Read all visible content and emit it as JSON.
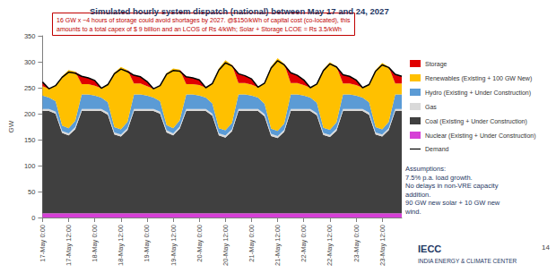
{
  "chart_data": {
    "type": "area",
    "stacked": true,
    "title": "Simulated hourly system dispatch (national) between May 17 and 24, 2027",
    "annotations": [
      "16 GW x ~4 hours of storage could avoid shortages by 2027. @$150/kWh of capital cost (co-located), this",
      "amounts to a total capex of $ 9 billion and an LCOS of Rs 4/kWh; Solar + Storage LCOE = Rs 3.5/kWh"
    ],
    "notes": [
      "Assumptions:",
      "7.5% p.a. load growth.",
      "No delays in non-VRE capacity",
      "addition.",
      "90 GW new solar + 10 GW new",
      "wind."
    ],
    "y_label": "GW",
    "ylim": [
      0,
      350
    ],
    "yticks": [
      0,
      50,
      100,
      150,
      200,
      250,
      300,
      350
    ],
    "grid": false,
    "legend": "right",
    "categories": [
      "17-May 0:00",
      null,
      null,
      null,
      "17-May 12:00",
      null,
      null,
      null,
      "18-May 0:00",
      null,
      null,
      null,
      "18-May 12:00",
      null,
      null,
      null,
      "19-May 0:00",
      null,
      null,
      null,
      "19-May 12:00",
      null,
      null,
      null,
      "20-May 0:00",
      null,
      null,
      null,
      "20-May 12:00",
      null,
      null,
      null,
      "21-May 0:00",
      null,
      null,
      null,
      "21-May 12:00",
      null,
      null,
      null,
      "22-May 0:00",
      null,
      null,
      null,
      "22-May 12:00",
      null,
      null,
      null,
      "23-May 0:00",
      null,
      null,
      null,
      "23-May 12:00",
      null,
      null,
      null
    ],
    "series": [
      {
        "name": "Storage",
        "type": "area",
        "color": "#e00000",
        "values": [
          8,
          0,
          0,
          0,
          0,
          0,
          15,
          12,
          10,
          0,
          0,
          0,
          0,
          0,
          16,
          13,
          9,
          0,
          0,
          0,
          0,
          0,
          14,
          12,
          10,
          0,
          0,
          0,
          0,
          0,
          18,
          14,
          11,
          0,
          0,
          0,
          0,
          0,
          20,
          15,
          10,
          0,
          0,
          0,
          0,
          0,
          17,
          14,
          10,
          0,
          0,
          0,
          0,
          0,
          18,
          14
        ]
      },
      {
        "name": "Renewables (Existing + 100 GW New)",
        "type": "area",
        "color": "#ffc000",
        "values": [
          18,
          17,
          30,
          95,
          112,
          95,
          20,
          20,
          19,
          18,
          34,
          105,
          120,
          100,
          21,
          21,
          18,
          17,
          30,
          100,
          115,
          98,
          20,
          20,
          20,
          19,
          38,
          115,
          135,
          112,
          22,
          22,
          21,
          20,
          40,
          120,
          140,
          115,
          22,
          22,
          20,
          19,
          36,
          112,
          130,
          108,
          21,
          21,
          20,
          19,
          34,
          110,
          128,
          106,
          21,
          21
        ]
      },
      {
        "name": "Hydro (Existing + Under Construction)",
        "type": "area",
        "color": "#5b9bd5",
        "values": [
          26,
          22,
          20,
          10,
          10,
          12,
          28,
          28,
          26,
          22,
          20,
          10,
          10,
          12,
          28,
          28,
          26,
          22,
          20,
          10,
          10,
          12,
          28,
          28,
          26,
          22,
          20,
          10,
          10,
          12,
          28,
          28,
          26,
          22,
          20,
          10,
          10,
          12,
          28,
          28,
          26,
          22,
          20,
          10,
          10,
          12,
          28,
          28,
          26,
          22,
          20,
          10,
          10,
          12,
          28,
          28
        ]
      },
      {
        "name": "Gas",
        "type": "area",
        "color": "#d9d9d9",
        "values": [
          4,
          4,
          4,
          4,
          4,
          4,
          4,
          4,
          4,
          4,
          4,
          4,
          4,
          4,
          4,
          4,
          4,
          4,
          4,
          4,
          4,
          4,
          4,
          4,
          4,
          4,
          4,
          4,
          4,
          4,
          4,
          4,
          4,
          4,
          4,
          4,
          4,
          4,
          4,
          4,
          4,
          4,
          4,
          4,
          4,
          4,
          4,
          4,
          4,
          4,
          4,
          4,
          4,
          4,
          4,
          4
        ]
      },
      {
        "name": "Coal (Existing + Under Construction)",
        "type": "area",
        "color": "#404040",
        "values": [
          197,
          197,
          192,
          155,
          150,
          162,
          197,
          197,
          197,
          197,
          190,
          152,
          148,
          160,
          197,
          197,
          197,
          197,
          192,
          156,
          150,
          163,
          197,
          197,
          197,
          197,
          188,
          150,
          146,
          158,
          197,
          197,
          197,
          197,
          187,
          149,
          145,
          157,
          197,
          197,
          197,
          197,
          189,
          151,
          147,
          159,
          197,
          197,
          197,
          197,
          190,
          152,
          148,
          160,
          197,
          197
        ]
      },
      {
        "name": "Nuclear (Existing + Under Construction)",
        "type": "area",
        "color": "#d63fd6",
        "values": [
          8,
          8,
          8,
          8,
          8,
          8,
          8,
          8,
          8,
          8,
          8,
          8,
          8,
          8,
          8,
          8,
          8,
          8,
          8,
          8,
          8,
          8,
          8,
          8,
          8,
          8,
          8,
          8,
          8,
          8,
          8,
          8,
          8,
          8,
          8,
          8,
          8,
          8,
          8,
          8,
          8,
          8,
          8,
          8,
          8,
          8,
          8,
          8,
          8,
          8,
          8,
          8,
          8,
          8,
          8,
          8
        ]
      },
      {
        "name": "Demand",
        "type": "line",
        "color": "#000000",
        "values": [
          261,
          248,
          254,
          270,
          280,
          278,
          272,
          269,
          264,
          249,
          256,
          277,
          286,
          281,
          274,
          271,
          262,
          248,
          254,
          276,
          283,
          282,
          271,
          269,
          265,
          250,
          258,
          284,
          298,
          292,
          277,
          273,
          267,
          251,
          259,
          288,
          302,
          294,
          279,
          274,
          265,
          250,
          257,
          283,
          296,
          290,
          275,
          272,
          265,
          250,
          256,
          282,
          294,
          289,
          276,
          272
        ]
      }
    ]
  },
  "footer": {
    "logo": "IECC",
    "organization": "INDIA ENERGY & CLIMATE CENTER",
    "page": 14
  }
}
